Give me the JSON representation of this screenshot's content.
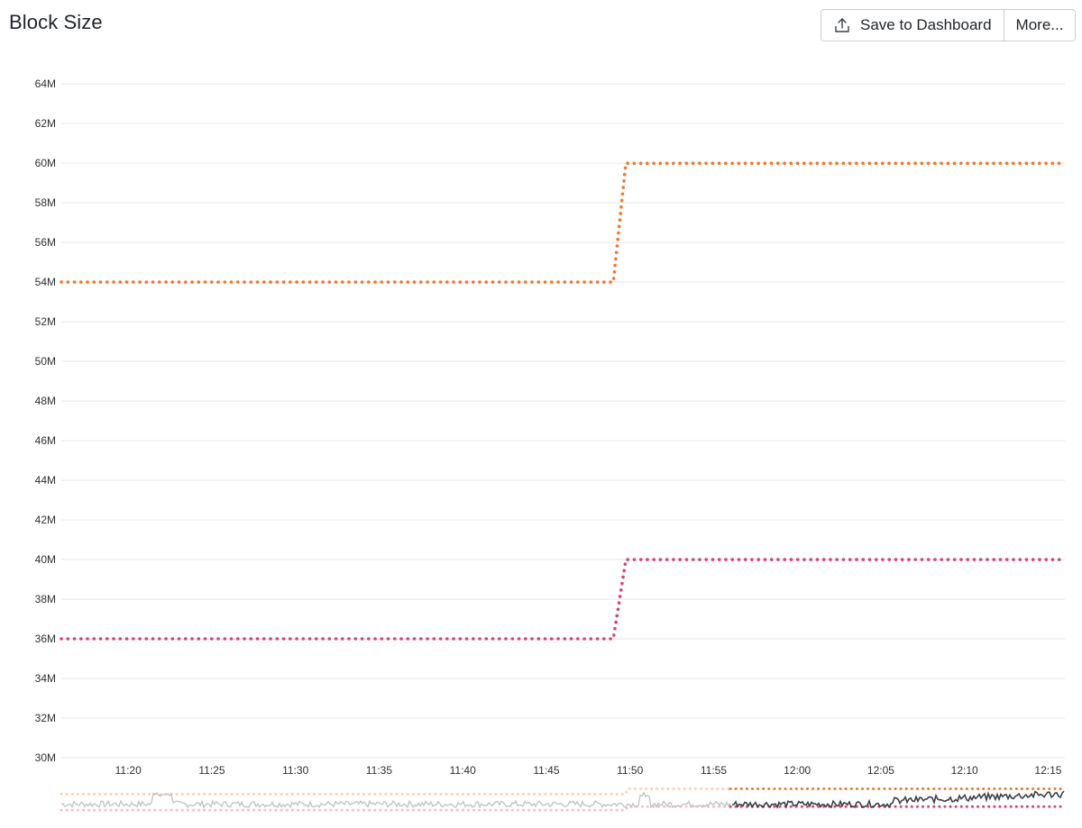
{
  "header": {
    "title": "Block Size",
    "save_label": "Save to Dashboard",
    "more_label": "More...",
    "save_icon": "upload-icon"
  },
  "colors": {
    "series_upper": "#f07a2e",
    "series_lower": "#d94478",
    "overview_line": "#3b3f45",
    "overview_line_faded": "#c4c4c4",
    "gridline": "#e6e6e6"
  },
  "chart_data": {
    "type": "line",
    "title": "Block Size",
    "xlabel": "",
    "ylabel": "",
    "ylim": [
      30,
      64.6
    ],
    "y_unit": "M",
    "y_ticks": [
      "30M",
      "32M",
      "34M",
      "36M",
      "38M",
      "40M",
      "42M",
      "44M",
      "46M",
      "48M",
      "50M",
      "52M",
      "54M",
      "56M",
      "58M",
      "60M",
      "62M",
      "64M"
    ],
    "y_tick_values": [
      30,
      32,
      34,
      36,
      38,
      40,
      42,
      44,
      46,
      48,
      50,
      52,
      54,
      56,
      58,
      60,
      62,
      64
    ],
    "x_ticks": [
      "11:20",
      "11:25",
      "11:30",
      "11:35",
      "11:40",
      "11:45",
      "11:50",
      "11:55",
      "12:00",
      "12:05",
      "12:10",
      "12:15"
    ],
    "xlim": [
      "11:16",
      "12:16"
    ],
    "series": [
      {
        "line_style": "dotted",
        "points": [
          [
            "11:16",
            54
          ],
          [
            "11:49",
            54
          ],
          [
            "11:49.75",
            60
          ],
          [
            "12:16",
            60
          ]
        ]
      },
      {
        "line_style": "dotted",
        "points": [
          [
            "11:16",
            36
          ],
          [
            "11:49",
            36
          ],
          [
            "11:49.75",
            40
          ],
          [
            "12:16",
            40
          ]
        ]
      }
    ],
    "grid": true,
    "legend": "none",
    "overview_selected_from": "11:56"
  }
}
